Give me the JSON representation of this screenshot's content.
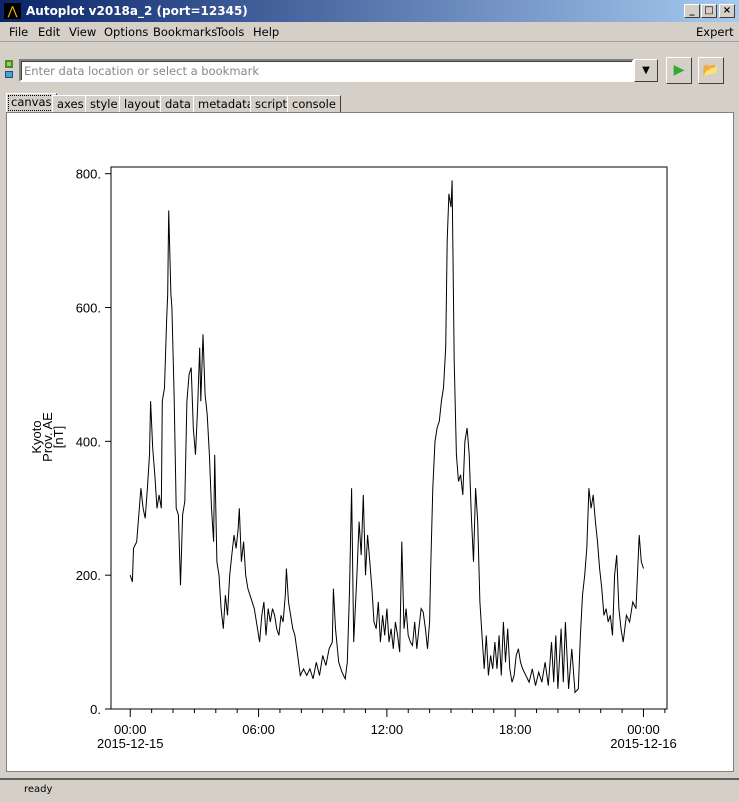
{
  "window": {
    "title": "Autoplot v2018a_2 (port=12345)",
    "controls": [
      "_",
      "□",
      "×"
    ]
  },
  "menu": {
    "items": [
      "File",
      "Edit",
      "View",
      "Options",
      "Bookmarks",
      "Tools",
      "Help"
    ],
    "expert": "Expert"
  },
  "toolbar": {
    "url_placeholder": "Enter data location or select a bookmark",
    "url_value": "",
    "dropdown_icon": "▼",
    "go_icon": "▶",
    "open_icon": "📂"
  },
  "tabs": [
    {
      "label": "canvas",
      "active": true
    },
    {
      "label": "axes"
    },
    {
      "label": "style"
    },
    {
      "label": "layout"
    },
    {
      "label": "data"
    },
    {
      "label": "metadata"
    },
    {
      "label": "script"
    },
    {
      "label": "console"
    }
  ],
  "status": {
    "text": "ready"
  },
  "chart_data": {
    "type": "line",
    "ylabel_lines": [
      "Kyoto",
      "Prov. AE",
      "[nT]"
    ],
    "ylim": [
      0,
      810
    ],
    "yticks": [
      {
        "v": 0,
        "label": "0."
      },
      {
        "v": 200,
        "label": "200."
      },
      {
        "v": 400,
        "label": "400."
      },
      {
        "v": 600,
        "label": "600."
      },
      {
        "v": 800,
        "label": "800."
      }
    ],
    "xlim_hours": [
      -0.9,
      25.1
    ],
    "xticks": [
      {
        "h": 0,
        "label": "00:00",
        "sub": "2015-12-15"
      },
      {
        "h": 6,
        "label": "06:00",
        "sub": ""
      },
      {
        "h": 12,
        "label": "12:00",
        "sub": ""
      },
      {
        "h": 18,
        "label": "18:00",
        "sub": ""
      },
      {
        "h": 24,
        "label": "00:00",
        "sub": "2015-12-16"
      }
    ],
    "line_color": "#000000",
    "series": {
      "x_hours": [
        0,
        0.1,
        0.15,
        0.3,
        0.4,
        0.5,
        0.6,
        0.7,
        0.8,
        0.9,
        0.95,
        1.05,
        1.15,
        1.25,
        1.35,
        1.45,
        1.5,
        1.6,
        1.7,
        1.75,
        1.8,
        1.9,
        1.95,
        2.05,
        2.15,
        2.25,
        2.35,
        2.45,
        2.55,
        2.65,
        2.75,
        2.85,
        2.95,
        3.05,
        3.15,
        3.25,
        3.3,
        3.4,
        3.5,
        3.6,
        3.7,
        3.8,
        3.9,
        3.95,
        4.05,
        4.15,
        4.25,
        4.35,
        4.45,
        4.55,
        4.65,
        4.75,
        4.85,
        4.95,
        5.05,
        5.1,
        5.2,
        5.3,
        5.4,
        5.5,
        5.6,
        5.8,
        5.95,
        6.05,
        6.15,
        6.25,
        6.35,
        6.45,
        6.55,
        6.65,
        6.75,
        6.85,
        6.95,
        7.05,
        7.15,
        7.25,
        7.3,
        7.4,
        7.5,
        7.6,
        7.7,
        7.85,
        7.95,
        8.1,
        8.25,
        8.4,
        8.55,
        8.7,
        8.85,
        9,
        9.15,
        9.3,
        9.45,
        9.5,
        9.6,
        9.75,
        9.9,
        10.05,
        10.15,
        10.25,
        10.35,
        10.45,
        10.6,
        10.7,
        10.8,
        10.9,
        11,
        11.1,
        11.2,
        11.3,
        11.4,
        11.5,
        11.6,
        11.7,
        11.8,
        11.9,
        12,
        12.1,
        12.2,
        12.3,
        12.4,
        12.5,
        12.6,
        12.7,
        12.8,
        12.9,
        13,
        13.1,
        13.2,
        13.3,
        13.4,
        13.5,
        13.6,
        13.7,
        13.8,
        13.9,
        14,
        14.05,
        14.15,
        14.25,
        14.35,
        14.45,
        14.55,
        14.65,
        14.75,
        14.82,
        14.9,
        15,
        15.05,
        15.15,
        15.25,
        15.35,
        15.45,
        15.55,
        15.65,
        15.75,
        15.85,
        15.95,
        16.05,
        16.15,
        16.25,
        16.35,
        16.45,
        16.55,
        16.65,
        16.75,
        16.85,
        16.95,
        17.05,
        17.15,
        17.25,
        17.35,
        17.45,
        17.55,
        17.65,
        17.75,
        17.85,
        17.95,
        18.05,
        18.15,
        18.25,
        18.35,
        18.5,
        18.65,
        18.8,
        18.95,
        19.1,
        19.25,
        19.4,
        19.55,
        19.7,
        19.8,
        19.9,
        20,
        20.15,
        20.25,
        20.35,
        20.5,
        20.65,
        20.8,
        20.95,
        21.05,
        21.15,
        21.25,
        21.35,
        21.45,
        21.55,
        21.65,
        21.75,
        21.85,
        21.95,
        22.05,
        22.15,
        22.25,
        22.35,
        22.45,
        22.55,
        22.65,
        22.75,
        22.85,
        22.95,
        23.05,
        23.2,
        23.35,
        23.5,
        23.65,
        23.8,
        23.9,
        24
      ],
      "y_nT": [
        200,
        190,
        240,
        250,
        290,
        330,
        300,
        285,
        330,
        380,
        460,
        390,
        350,
        300,
        320,
        300,
        460,
        480,
        580,
        620,
        745,
        620,
        600,
        470,
        300,
        290,
        185,
        290,
        310,
        460,
        500,
        510,
        420,
        380,
        450,
        540,
        460,
        560,
        470,
        440,
        380,
        300,
        250,
        380,
        220,
        200,
        150,
        120,
        170,
        140,
        200,
        230,
        260,
        240,
        270,
        300,
        220,
        250,
        200,
        180,
        170,
        150,
        120,
        100,
        140,
        160,
        110,
        150,
        130,
        150,
        140,
        120,
        110,
        140,
        130,
        170,
        210,
        160,
        140,
        120,
        110,
        75,
        50,
        60,
        50,
        60,
        45,
        70,
        50,
        80,
        65,
        90,
        100,
        180,
        120,
        70,
        55,
        45,
        70,
        170,
        330,
        100,
        200,
        280,
        230,
        320,
        200,
        260,
        220,
        180,
        130,
        120,
        160,
        100,
        140,
        110,
        150,
        100,
        120,
        90,
        130,
        110,
        85,
        250,
        120,
        150,
        110,
        100,
        95,
        130,
        90,
        120,
        150,
        145,
        120,
        90,
        130,
        210,
        330,
        400,
        420,
        430,
        460,
        480,
        540,
        700,
        770,
        750,
        790,
        520,
        380,
        340,
        350,
        320,
        400,
        420,
        380,
        290,
        220,
        330,
        280,
        160,
        110,
        60,
        110,
        50,
        80,
        60,
        100,
        60,
        110,
        50,
        130,
        70,
        120,
        60,
        40,
        50,
        80,
        90,
        70,
        60,
        50,
        40,
        60,
        35,
        55,
        40,
        70,
        35,
        100,
        40,
        110,
        30,
        120,
        40,
        130,
        30,
        90,
        25,
        30,
        110,
        170,
        200,
        240,
        330,
        300,
        320,
        280,
        250,
        210,
        180,
        140,
        150,
        130,
        140,
        110,
        200,
        230,
        150,
        120,
        100,
        140,
        130,
        160,
        150,
        260,
        220,
        210
      ]
    }
  }
}
